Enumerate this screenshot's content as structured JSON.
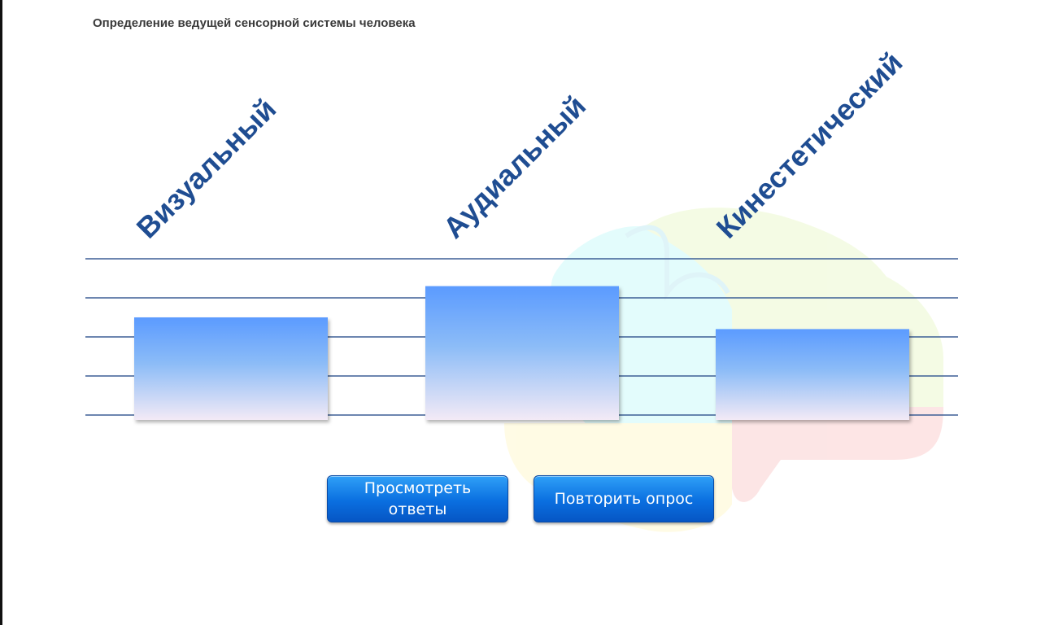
{
  "page": {
    "title": "Определение ведущей сенсорной системы человека"
  },
  "buttons": {
    "view_answers": "Просмотреть ответы",
    "repeat_survey": "Повторить опрос"
  },
  "colors": {
    "gridline": "#3d5f95",
    "label": "#1f4d92",
    "bar_top": "#5b9bff",
    "bar_bottom": "#f1e8f6",
    "button": "#0a6fe0"
  },
  "chart_data": {
    "type": "bar",
    "title": "",
    "xlabel": "",
    "ylabel": "",
    "categories": [
      "Визуальный",
      "Аудиальный",
      "Кинестетический"
    ],
    "values": [
      2.5,
      3.3,
      2.2
    ],
    "ylim": [
      0,
      4
    ],
    "grid": true,
    "legend": "none"
  }
}
